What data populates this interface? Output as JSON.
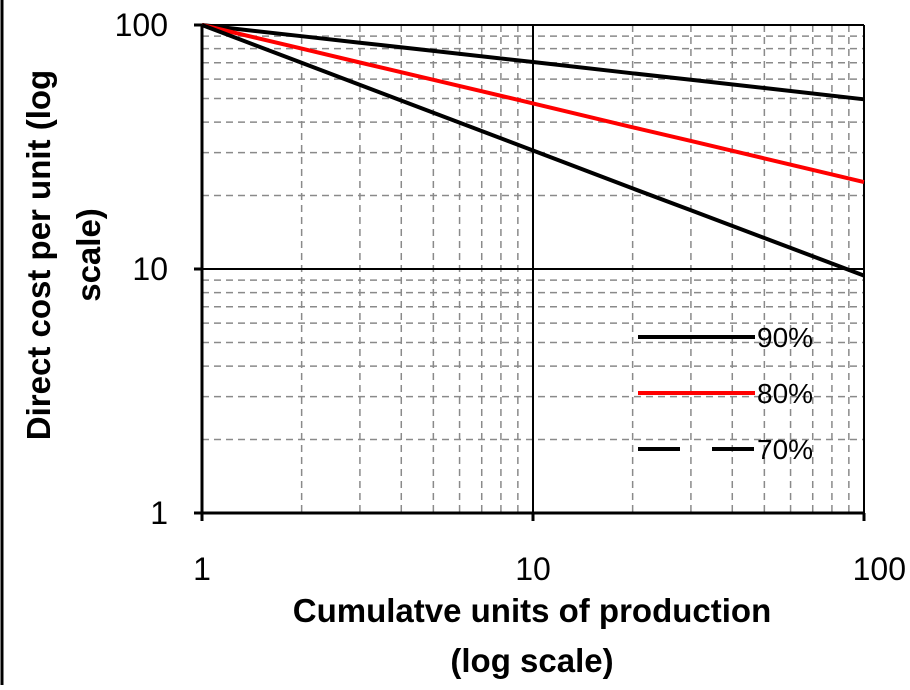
{
  "chart_data": {
    "type": "line",
    "title": "",
    "xlabel_lines": [
      "Cumulatve units of production",
      "(log scale)"
    ],
    "ylabel_lines": [
      "Direct cost per unit (log",
      "scale)"
    ],
    "x_scale": "log",
    "y_scale": "log",
    "xlim": [
      1,
      100
    ],
    "ylim": [
      1,
      100
    ],
    "x_ticks": [
      "1",
      "10",
      "100"
    ],
    "y_ticks": [
      "1",
      "10",
      "100"
    ],
    "grid": "major solid, minor dashed",
    "legend_position": "bottom-right",
    "series": [
      {
        "name": "90%",
        "color": "#000000",
        "dash": "solid",
        "x": [
          1,
          2,
          3,
          5,
          10,
          20,
          30,
          50,
          100
        ],
        "y": [
          100,
          90,
          84.6,
          78.3,
          70.5,
          63.4,
          59.6,
          55.2,
          49.6
        ]
      },
      {
        "name": "80%",
        "color": "#ff0000",
        "dash": "solid",
        "x": [
          1,
          2,
          3,
          5,
          10,
          20,
          30,
          50,
          100
        ],
        "y": [
          100,
          80,
          70.2,
          59.6,
          47.7,
          38.1,
          33.5,
          28.4,
          22.7
        ]
      },
      {
        "name": "70%",
        "color": "#000000",
        "dash": "dashed",
        "x": [
          1,
          2,
          3,
          5,
          10,
          20,
          30,
          50,
          100
        ],
        "y": [
          100,
          70,
          56.8,
          43.7,
          30.6,
          21.4,
          17.4,
          13.4,
          9.4
        ]
      }
    ]
  }
}
